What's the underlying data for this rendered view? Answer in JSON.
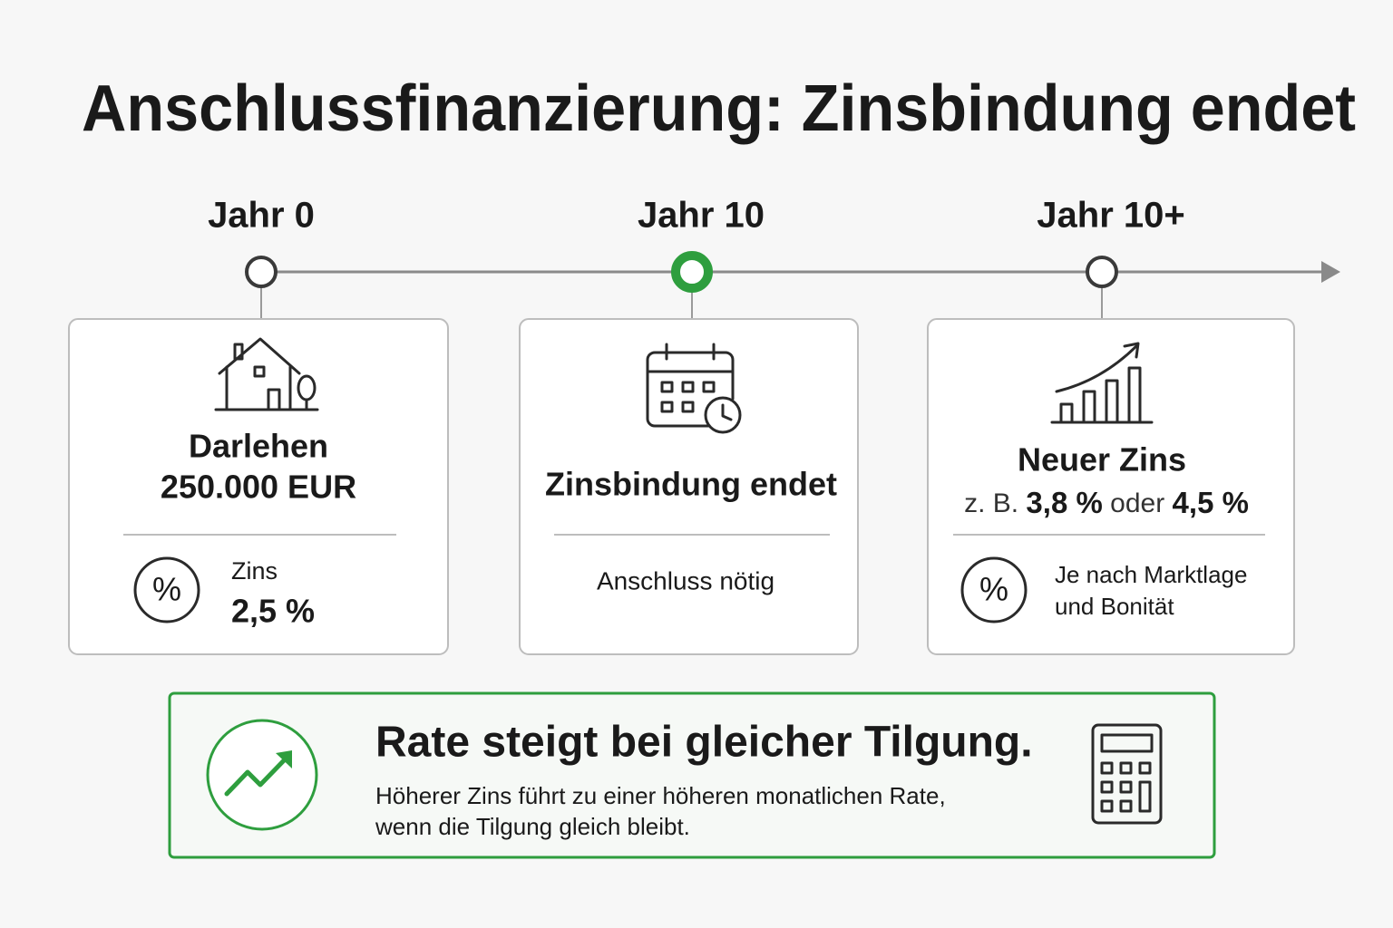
{
  "header": {
    "title": "Anschlussfinanzierung: Zinsbindung endet"
  },
  "timeline": {
    "labels": [
      "Jahr 0",
      "Jahr 10",
      "Jahr 10+"
    ]
  },
  "cards": [
    {
      "heading": [
        "Darlehen",
        "250.000 EUR"
      ],
      "detail": [
        "Zins",
        "2,5 %"
      ]
    },
    {
      "heading": [
        "Zinsbindung endet"
      ],
      "detail": [
        "Anschluss nötig"
      ]
    },
    {
      "heading": [
        "Neuer Zins"
      ],
      "subline": [
        "z. B.",
        "3,8 %",
        "oder",
        "4,5 %"
      ],
      "detail": [
        "Je nach Marktlage",
        "und Bonität"
      ]
    }
  ],
  "callout": {
    "title": "Rate steigt bei gleicher Tilgung.",
    "body": [
      "Höherer Zins führt zu einer höheren monatlichen Rate,",
      "wenn die Tilgung gleich bleibt."
    ]
  }
}
